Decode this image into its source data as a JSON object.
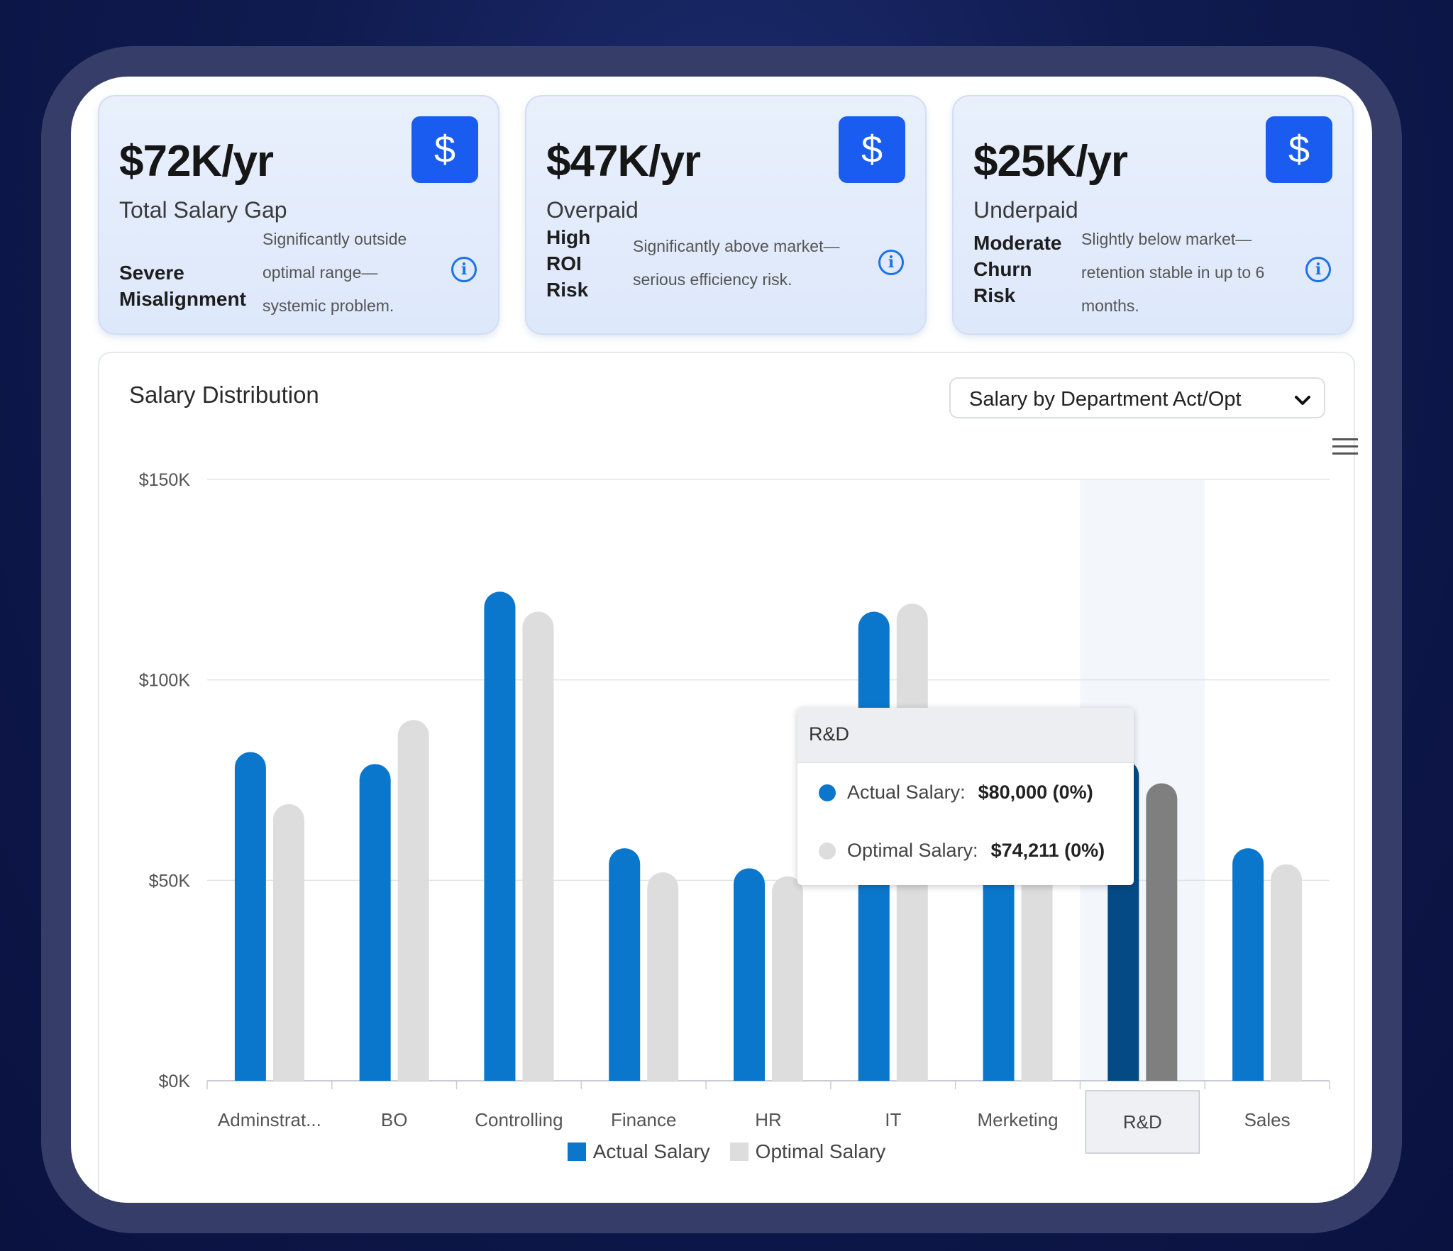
{
  "cards": [
    {
      "value": "$72K/yr",
      "label": "Total Salary Gap",
      "icon": "dollar-icon",
      "risk_lines": [
        "Severe",
        "Misalignment"
      ],
      "desc_lines": [
        "Significantly outside",
        "optimal range—",
        "systemic problem."
      ]
    },
    {
      "value": "$47K/yr",
      "label": "Overpaid",
      "icon": "dollar-icon",
      "risk_lines": [
        "High",
        "ROI",
        "Risk"
      ],
      "desc_lines": [
        "Significantly above market—",
        "serious efficiency risk."
      ]
    },
    {
      "value": "$25K/yr",
      "label": "Underpaid",
      "icon": "dollar-icon",
      "risk_lines": [
        "Moderate",
        "Churn",
        "Risk"
      ],
      "desc_lines": [
        "Slightly below market—",
        "retention stable in up to 6",
        "months."
      ]
    }
  ],
  "chart_section": {
    "title": "Salary Distribution",
    "dropdown_value": "Salary by Department Act/Opt"
  },
  "tooltip": {
    "title": "R&D",
    "rows": [
      {
        "label": "Actual Salary:",
        "value": "$80,000 (0%)"
      },
      {
        "label": "Optimal Salary:",
        "value": "$74,211 (0%)"
      }
    ]
  },
  "colors": {
    "actual": "#0b77cc",
    "optimal": "#dddddd",
    "actual_highlight": "#044b85",
    "optimal_highlight": "#7f7f7f",
    "icon_bg": "#1a5cf0"
  },
  "chart_data": {
    "type": "bar",
    "categories": [
      "Adminstrat...",
      "BO",
      "Controlling",
      "Finance",
      "HR",
      "IT",
      "Merketing",
      "R&D",
      "Sales"
    ],
    "series": [
      {
        "name": "Actual Salary",
        "values": [
          82000,
          79000,
          122000,
          58000,
          53000,
          117000,
          85000,
          80000,
          58000
        ]
      },
      {
        "name": "Optimal Salary",
        "values": [
          69000,
          90000,
          117000,
          52000,
          51000,
          119000,
          78000,
          74211,
          54000
        ]
      }
    ],
    "yticks": [
      "$0K",
      "$50K",
      "$100K",
      "$150K"
    ],
    "ylim": [
      0,
      150000
    ],
    "grid": true,
    "legend": "bottom",
    "highlighted_category": "R&D"
  }
}
